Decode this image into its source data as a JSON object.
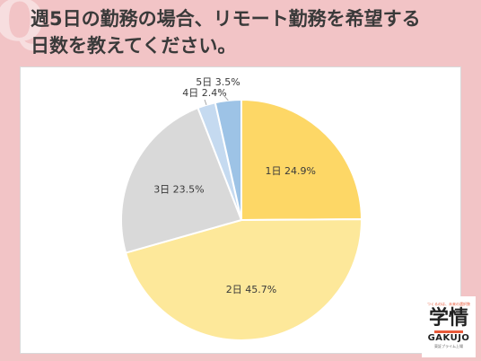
{
  "header": {
    "title_line1": "週5日の勤務の場合、リモート勤務を希望する",
    "title_line2": "日数を教えてください。"
  },
  "chart_data": {
    "type": "pie",
    "start_angle_deg": 0,
    "direction": "clockwise",
    "slices": [
      {
        "label": "1日",
        "value": 24.9,
        "display": "1日 24.9%",
        "color": "#fdd766",
        "label_position": "inside"
      },
      {
        "label": "2日",
        "value": 45.7,
        "display": "2日 45.7%",
        "color": "#fde89a",
        "label_position": "inside"
      },
      {
        "label": "3日",
        "value": 23.5,
        "display": "3日 23.5%",
        "color": "#d9d9d9",
        "label_position": "inside"
      },
      {
        "label": "4日",
        "value": 2.4,
        "display": "4日 2.4%",
        "color": "#c5daf0",
        "label_position": "outside"
      },
      {
        "label": "5日",
        "value": 3.5,
        "display": "5日 3.5%",
        "color": "#9dc3e6",
        "label_position": "outside"
      }
    ],
    "stroke_color": "#ffffff",
    "leader_line_color": "#a6a6a6"
  },
  "logo": {
    "tagline": "つくるのは、未来の選択肢",
    "main": "学情",
    "english": "GAKUJO",
    "subline": "東証プライム上場"
  }
}
